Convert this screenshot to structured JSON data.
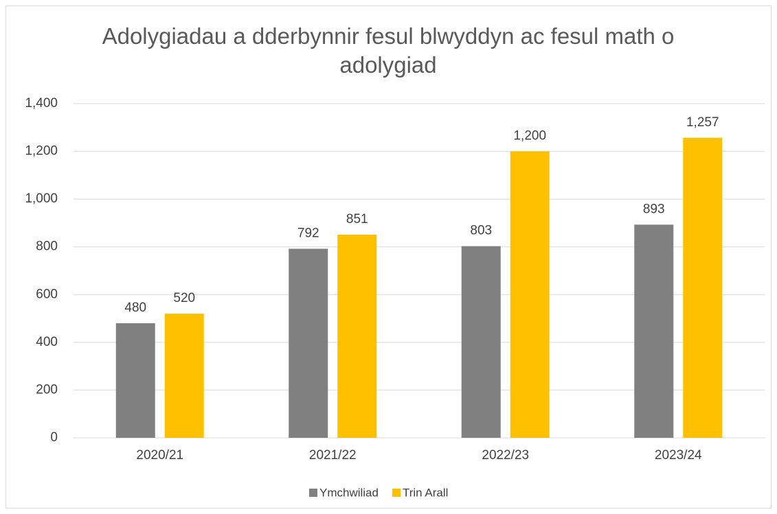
{
  "chart_data": {
    "type": "bar",
    "title": "Adolygiadau a dderbynnir fesul blwyddyn ac fesul math o adolygiad",
    "categories": [
      "2020/21",
      "2021/22",
      "2022/23",
      "2023/24"
    ],
    "series": [
      {
        "name": "Ymchwiliad",
        "color": "#808080",
        "values": [
          480,
          792,
          803,
          893
        ],
        "value_labels": [
          "480",
          "792",
          "803",
          "893"
        ]
      },
      {
        "name": "Trin Arall",
        "color": "#ffc000",
        "values": [
          520,
          851,
          1200,
          1257
        ],
        "value_labels": [
          "520",
          "851",
          "1,200",
          "1,257"
        ]
      }
    ],
    "ylim": [
      0,
      1400
    ],
    "yticks": [
      0,
      200,
      400,
      600,
      800,
      {
        "value": 1000,
        "label": "1,000"
      },
      {
        "value": 1200,
        "label": "1,200"
      },
      {
        "value": 1400,
        "label": "1,400"
      }
    ],
    "grid": true,
    "legend": "bottom"
  }
}
